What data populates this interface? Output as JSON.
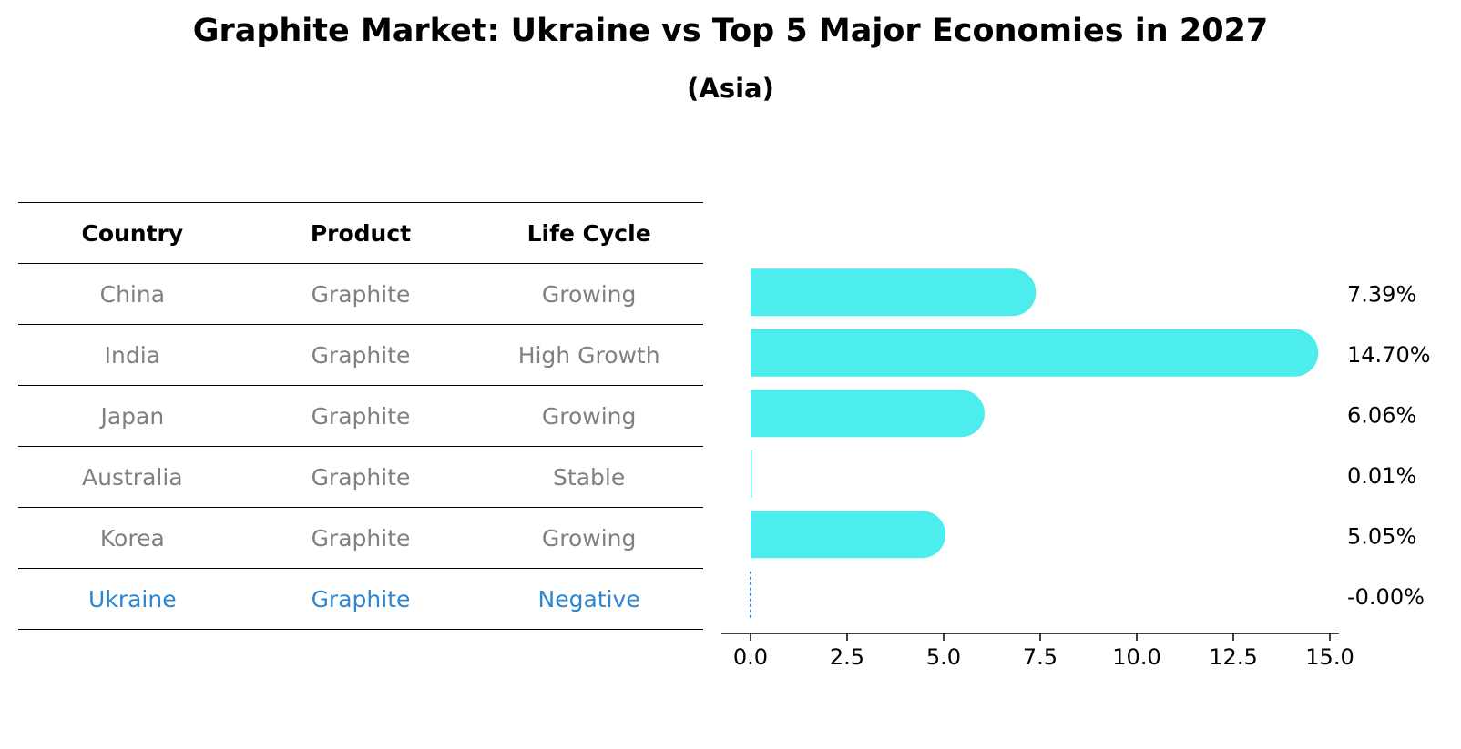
{
  "chart_data": {
    "type": "bar",
    "orientation": "horizontal",
    "title": "Graphite Market: Ukraine vs Top 5 Major Economies in 2027",
    "subtitle": "(Asia)",
    "table": {
      "headers": [
        "Country",
        "Product",
        "Life Cycle"
      ],
      "rows": [
        {
          "country": "China",
          "product": "Graphite",
          "life_cycle": "Growing"
        },
        {
          "country": "India",
          "product": "Graphite",
          "life_cycle": "High Growth"
        },
        {
          "country": "Japan",
          "product": "Graphite",
          "life_cycle": "Growing"
        },
        {
          "country": "Australia",
          "product": "Graphite",
          "life_cycle": "Stable"
        },
        {
          "country": "Korea",
          "product": "Graphite",
          "life_cycle": "Growing"
        },
        {
          "country": "Ukraine",
          "product": "Graphite",
          "life_cycle": "Negative"
        }
      ],
      "highlight_row": "Ukraine"
    },
    "categories": [
      "China",
      "India",
      "Japan",
      "Australia",
      "Korea",
      "Ukraine"
    ],
    "values": [
      7.39,
      14.7,
      6.06,
      0.01,
      5.05,
      -0.0
    ],
    "value_labels": [
      "7.39%",
      "14.70%",
      "6.06%",
      "0.01%",
      "5.05%",
      "-0.00%"
    ],
    "xlim": [
      0,
      15
    ],
    "xticks": [
      "0.0",
      "2.5",
      "5.0",
      "7.5",
      "10.0",
      "12.5",
      "15.0"
    ],
    "xtick_values": [
      0,
      2.5,
      5,
      7.5,
      10,
      12.5,
      15
    ],
    "xlabel": "",
    "ylabel": "",
    "colors": {
      "bar": "#4eeded",
      "highlight": "#2e86d1",
      "muted_text": "#808080"
    }
  }
}
